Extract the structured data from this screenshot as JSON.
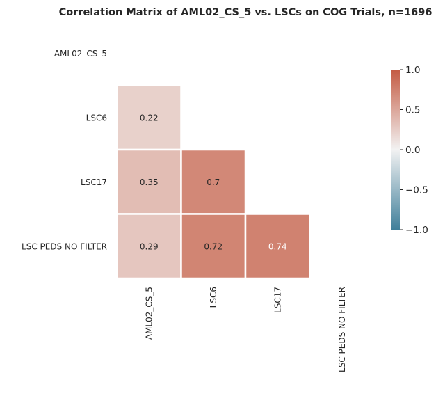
{
  "chart_data": {
    "type": "heatmap",
    "title": "Correlation Matrix of AML02_CS_5 vs. LSCs on COG Trials, n=1696",
    "row_labels": [
      "AML02_CS_5",
      "LSC6",
      "LSC17",
      "LSC PEDS NO FILTER"
    ],
    "col_labels": [
      "AML02_CS_5",
      "LSC6",
      "LSC17",
      "LSC PEDS NO FILTER"
    ],
    "cells": [
      {
        "row": 1,
        "col": 0,
        "value": 0.22,
        "label": "0.22"
      },
      {
        "row": 2,
        "col": 0,
        "value": 0.35,
        "label": "0.35"
      },
      {
        "row": 2,
        "col": 1,
        "value": 0.7,
        "label": "0.7"
      },
      {
        "row": 3,
        "col": 0,
        "value": 0.29,
        "label": "0.29"
      },
      {
        "row": 3,
        "col": 1,
        "value": 0.72,
        "label": "0.72"
      },
      {
        "row": 3,
        "col": 2,
        "value": 0.74,
        "label": "0.74"
      }
    ],
    "mask": "upper-triangle-including-diagonal",
    "colorbar": {
      "vmin": -1.0,
      "vmax": 1.0,
      "ticks": [
        1.0,
        0.5,
        0.0,
        -0.5,
        -1.0
      ],
      "tick_labels": [
        "1.0",
        "0.5",
        "0.0",
        "−0.5",
        "−1.0"
      ],
      "colors": {
        "low": "#3f7f9a",
        "mid": "#f2f2f2",
        "high": "#c45a42"
      },
      "placement": "right"
    }
  }
}
